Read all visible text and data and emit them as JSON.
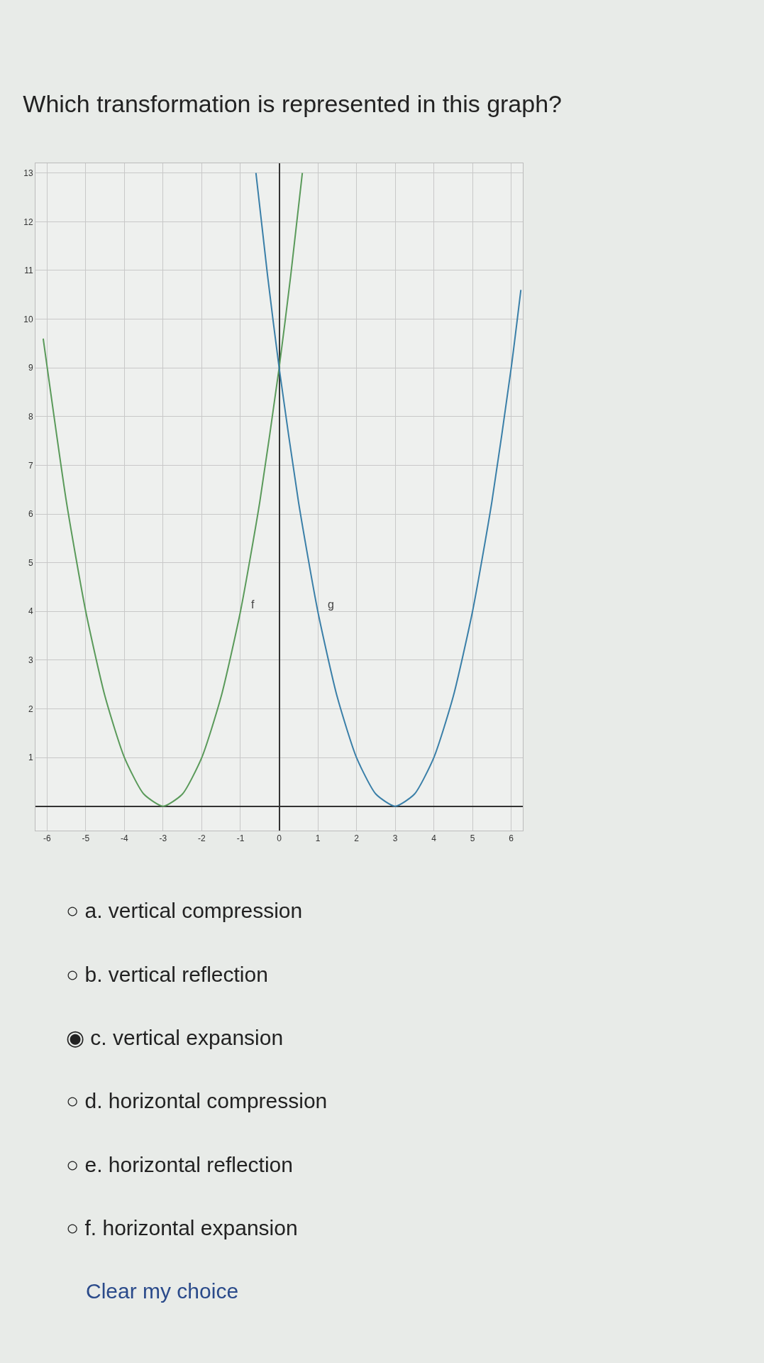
{
  "chart_data": {
    "type": "line",
    "title": "Which transformation is represented in this graph?",
    "series": [
      {
        "name": "f",
        "color": "#5a9a5a",
        "x": [
          -6.1,
          -5.5,
          -5,
          -4.5,
          -4,
          -3.5,
          -3,
          -2.5,
          -2,
          -1.5,
          -1,
          -0.5,
          0,
          0.3,
          0.6
        ],
        "values": [
          9.6,
          6.25,
          4,
          2.25,
          1,
          0.25,
          0,
          0.25,
          1,
          2.25,
          4,
          6.25,
          9,
          10.9,
          13
        ]
      },
      {
        "name": "g",
        "color": "#3a7fa8",
        "x": [
          -0.6,
          -0.3,
          0,
          0.5,
          1,
          1.5,
          2,
          2.5,
          3,
          3.5,
          4,
          4.5,
          5,
          5.5,
          6,
          6.25
        ],
        "values": [
          13,
          10.9,
          9,
          6.25,
          4,
          2.25,
          1,
          0.25,
          0,
          0.25,
          1,
          2.25,
          4,
          6.25,
          9,
          10.6
        ]
      }
    ],
    "xlim": [
      -6.3,
      6.3
    ],
    "ylim": [
      -0.5,
      13.2
    ],
    "xticks": [
      -6,
      -5,
      -4,
      -3,
      -2,
      -1,
      0,
      1,
      2,
      3,
      4,
      5,
      6
    ],
    "yticks": [
      1,
      2,
      3,
      4,
      5,
      6,
      7,
      8,
      9,
      10,
      11,
      12,
      13
    ],
    "grid": true,
    "legend": false,
    "marker": "none",
    "line_style": "solid",
    "annotations": [
      "○ a. vertical compression",
      "○ b. vertical reflection",
      "◉ c. vertical expansion",
      "○ d. horizontal compression",
      "○ e. horizontal reflection",
      "○ f. horizontal expansion",
      "Clear my choice"
    ]
  }
}
